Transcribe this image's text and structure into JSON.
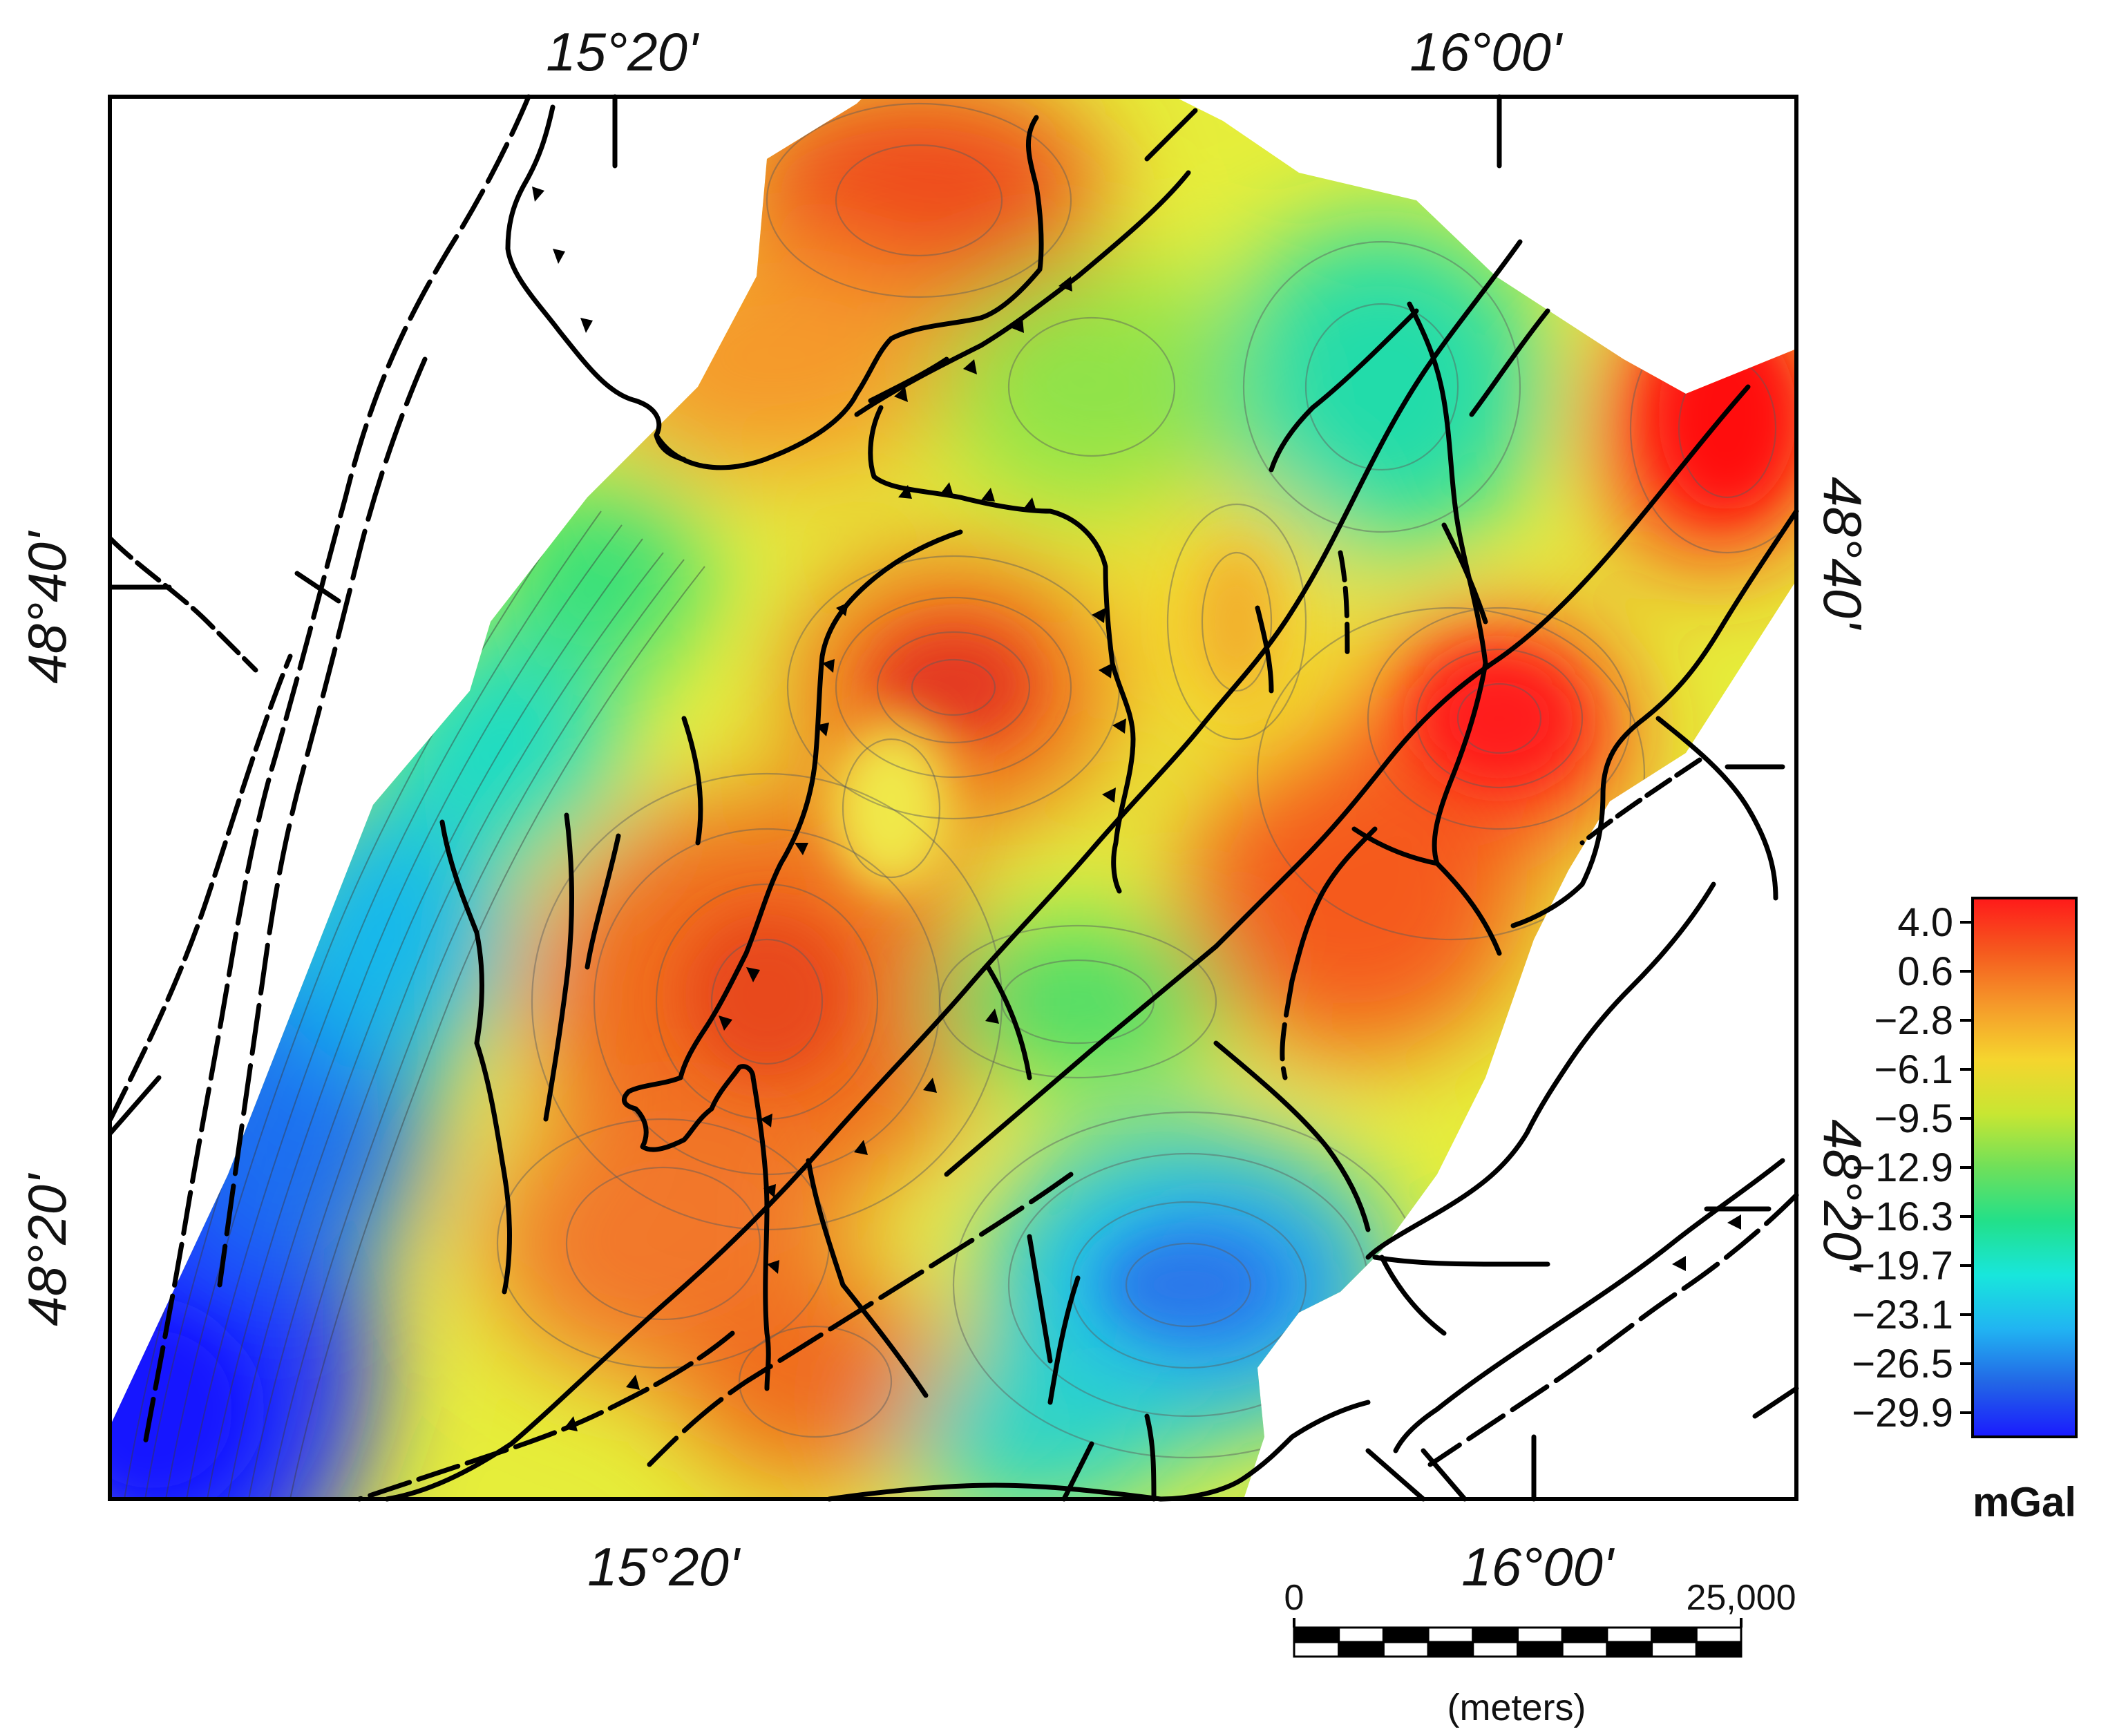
{
  "map": {
    "top_lon_labels": [
      "15°20'",
      "16°00'"
    ],
    "bottom_lon_labels": [
      "15°20'",
      "16°00'"
    ],
    "left_lat_labels": [
      "48°40'",
      "48°20'"
    ],
    "right_lat_labels": [
      "48°40'",
      "48°20'"
    ]
  },
  "colorbar": {
    "unit": "mGal",
    "tick_labels": [
      "4.0",
      "0.6",
      "−2.8",
      "−6.1",
      "−9.5",
      "−12.9",
      "−16.3",
      "−19.7",
      "−23.1",
      "−26.5",
      "−29.9"
    ],
    "values": [
      4.0,
      0.6,
      -2.8,
      -6.1,
      -9.5,
      -12.9,
      -16.3,
      -19.7,
      -23.1,
      -26.5,
      -29.9
    ],
    "colors": [
      "#ff1a1a",
      "#f55a1e",
      "#f59a2a",
      "#f5d52e",
      "#c8e632",
      "#6fe05a",
      "#22e08a",
      "#18e6dc",
      "#21b4f2",
      "#2266e6",
      "#1a1aff"
    ]
  },
  "scalebar": {
    "start_label": "0",
    "end_label": "25,000",
    "unit_label": "(meters)"
  }
}
